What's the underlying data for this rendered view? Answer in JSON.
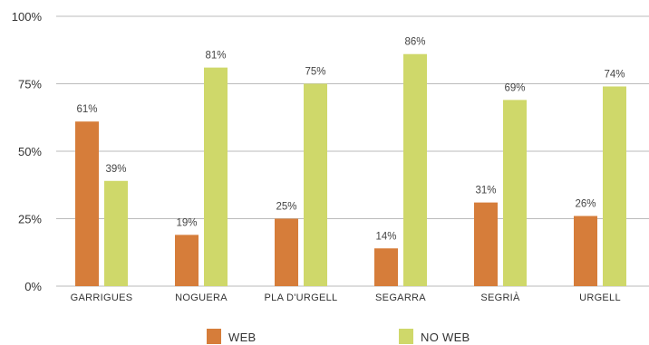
{
  "chart_data": {
    "type": "bar",
    "categories": [
      "GARRIGUES",
      "NOGUERA",
      "PLA D'URGELL",
      "SEGARRA",
      "SEGRIÀ",
      "URGELL"
    ],
    "series": [
      {
        "name": "WEB",
        "values": [
          61,
          19,
          25,
          14,
          31,
          26
        ],
        "labels": [
          "61%",
          "19%",
          "25%",
          "14%",
          "31%",
          "26%"
        ],
        "color": "#d67d3a"
      },
      {
        "name": "NO WEB",
        "values": [
          39,
          81,
          75,
          86,
          69,
          74
        ],
        "labels": [
          "39%",
          "81%",
          "75%",
          "86%",
          "69%",
          "74%"
        ],
        "color": "#cfd86a"
      }
    ],
    "ylim": [
      0,
      100
    ],
    "yticks": [
      0,
      25,
      50,
      75,
      100
    ],
    "ytick_labels": [
      "0%",
      "25%",
      "50%",
      "75%",
      "100%"
    ],
    "grid": true,
    "grid_color": "#bbbbbb",
    "legend_position": "bottom-center"
  }
}
